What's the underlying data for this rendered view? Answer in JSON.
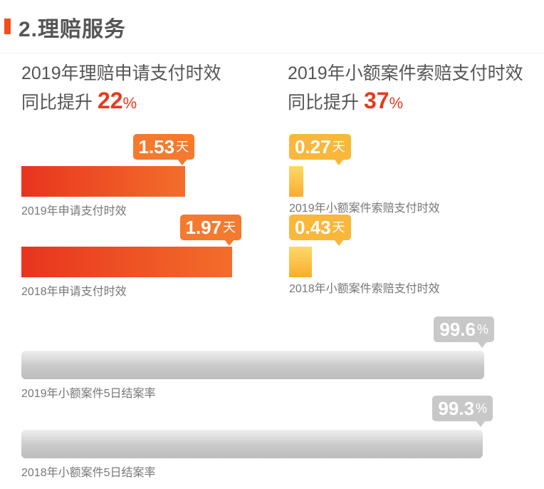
{
  "header": {
    "title": "2.理赔服务"
  },
  "highlights": [
    {
      "title": "2019年理赔申请支付时效",
      "prefix": "同比提升",
      "number": "22",
      "unit": "%"
    },
    {
      "title": "2019年小额案件索赔支付时效",
      "prefix": "同比提升",
      "number": "37",
      "unit": "%"
    }
  ],
  "chart_data": [
    {
      "type": "bar",
      "orientation": "horizontal",
      "categories": [
        "2019年申请支付时效",
        "2018年申请支付时效"
      ],
      "values": [
        1.53,
        1.97
      ],
      "data_labels": [
        "1.53",
        "1.97"
      ],
      "unit": "天",
      "color": "#ef4a22"
    },
    {
      "type": "bar",
      "orientation": "horizontal",
      "categories": [
        "2019年小额案件索赔支付时效",
        "2018年小额案件索赔支付时效"
      ],
      "values": [
        0.27,
        0.43
      ],
      "data_labels": [
        "0.27",
        "0.43"
      ],
      "unit": "天",
      "color": "#f9b73b"
    },
    {
      "type": "bar",
      "orientation": "horizontal",
      "categories": [
        "2019年小额案件5日结案率",
        "2018年小额案件5日结案率"
      ],
      "values": [
        99.6,
        99.3
      ],
      "data_labels": [
        "99.6",
        "99.3"
      ],
      "unit": "%",
      "color": "#c8c8c8"
    }
  ]
}
